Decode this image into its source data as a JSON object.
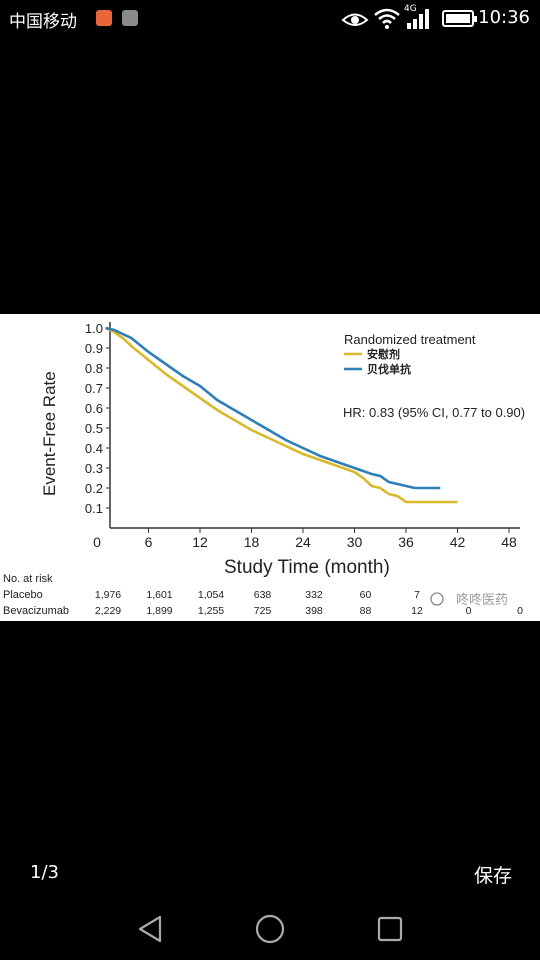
{
  "status_bar": {
    "carrier": "中国移动",
    "network": "4G",
    "time": "10:36",
    "icons": [
      "notification-app-icon",
      "gallery-app-icon",
      "eye-icon",
      "wifi-icon",
      "signal-icon",
      "battery-icon"
    ]
  },
  "chart_data": {
    "type": "line",
    "ylabel": "Event-Free Rate",
    "xlabel": "Study Time (month)",
    "x_ticks": [
      "0",
      "6",
      "12",
      "18",
      "24",
      "30",
      "36",
      "42",
      "48"
    ],
    "y_ticks": [
      "0.1",
      "0.2",
      "0.3",
      "0.4",
      "0.5",
      "0.6",
      "0.7",
      "0.8",
      "0.9",
      "1.0"
    ],
    "xlim": [
      0,
      48
    ],
    "ylim": [
      0.05,
      1.0
    ],
    "legend": {
      "title": "Randomized treatment",
      "position": "top-right",
      "entries": [
        "安慰剂",
        "贝伐单抗"
      ]
    },
    "annotation": "HR: 0.83 (95% CI, 0.77 to 0.90)",
    "series": [
      {
        "name": "安慰剂",
        "color": "#d9b92b",
        "x": [
          1,
          2,
          3,
          4,
          6,
          8,
          10,
          12,
          14,
          16,
          18,
          20,
          22,
          24,
          26,
          28,
          30,
          31,
          32,
          33,
          34,
          35,
          36,
          38,
          40,
          42
        ],
        "y": [
          1.0,
          0.98,
          0.95,
          0.91,
          0.84,
          0.77,
          0.71,
          0.65,
          0.59,
          0.54,
          0.49,
          0.45,
          0.41,
          0.37,
          0.34,
          0.31,
          0.28,
          0.25,
          0.21,
          0.2,
          0.17,
          0.16,
          0.13,
          0.13,
          0.13,
          0.13
        ]
      },
      {
        "name": "贝伐单抗",
        "color": "#2e7fb8",
        "x": [
          1,
          2,
          3,
          4,
          6,
          8,
          10,
          12,
          14,
          16,
          18,
          20,
          22,
          24,
          26,
          28,
          30,
          32,
          33,
          34,
          35,
          36,
          37,
          38,
          40
        ],
        "y": [
          1.0,
          0.99,
          0.97,
          0.95,
          0.88,
          0.82,
          0.76,
          0.71,
          0.64,
          0.59,
          0.54,
          0.49,
          0.44,
          0.4,
          0.36,
          0.33,
          0.3,
          0.27,
          0.26,
          0.23,
          0.22,
          0.21,
          0.2,
          0.2,
          0.2
        ]
      }
    ],
    "risk_table": {
      "header": "No. at risk",
      "columns": [
        "0",
        "6",
        "12",
        "18",
        "24",
        "30",
        "36",
        "42",
        "48"
      ],
      "rows": [
        {
          "label": "Placebo",
          "values": [
            "1,976",
            "1,601",
            "1,054",
            "638",
            "332",
            "60",
            "7",
            "",
            ""
          ]
        },
        {
          "label": "Bevacizumab",
          "values": [
            "2,229",
            "1,899",
            "1,255",
            "725",
            "398",
            "88",
            "12",
            "0",
            "0"
          ]
        }
      ]
    },
    "watermark": "咚咚医药"
  },
  "viewer": {
    "counter": "1/3",
    "save_label": "保存"
  },
  "nav_bar": {
    "icons": [
      "back-triangle-icon",
      "home-circle-icon",
      "recents-square-icon"
    ]
  }
}
